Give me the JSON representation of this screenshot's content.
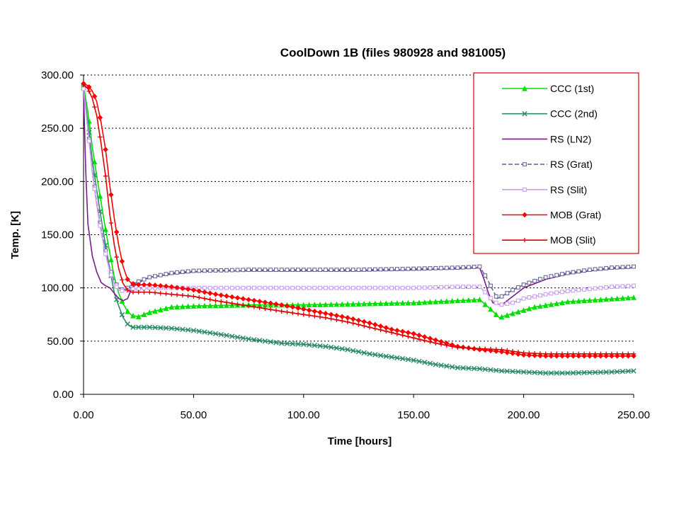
{
  "chart_data": {
    "type": "line",
    "title": "CoolDown 1B (files 980928 and 981005)",
    "xlabel": "Time [hours]",
    "ylabel": "Temp. [K]",
    "xlim": [
      0,
      250
    ],
    "ylim": [
      0,
      300
    ],
    "x_ticks": [
      "0.00",
      "50.00",
      "100.00",
      "150.00",
      "200.00",
      "250.00"
    ],
    "y_ticks": [
      "0.00",
      "50.00",
      "100.00",
      "150.00",
      "200.00",
      "250.00",
      "300.00"
    ],
    "grid": "horizontal-dotted",
    "legend_position": "top-right",
    "series": [
      {
        "name": "CCC (1st)",
        "color": "#00e000",
        "marker": "triangle",
        "dash": "solid",
        "points": [
          [
            0,
            290
          ],
          [
            2,
            265
          ],
          [
            4,
            232
          ],
          [
            6,
            205
          ],
          [
            8,
            180
          ],
          [
            10,
            155
          ],
          [
            12,
            132
          ],
          [
            14,
            110
          ],
          [
            16,
            95
          ],
          [
            18,
            85
          ],
          [
            20,
            78
          ],
          [
            22,
            74
          ],
          [
            25,
            73
          ],
          [
            30,
            77
          ],
          [
            40,
            82
          ],
          [
            50,
            83
          ],
          [
            75,
            84
          ],
          [
            100,
            84
          ],
          [
            125,
            85
          ],
          [
            150,
            86
          ],
          [
            180,
            89
          ],
          [
            185,
            80
          ],
          [
            189,
            72
          ],
          [
            195,
            76
          ],
          [
            205,
            82
          ],
          [
            220,
            87
          ],
          [
            235,
            89
          ],
          [
            250,
            91
          ]
        ]
      },
      {
        "name": "CCC (2nd)",
        "color": "#2e8b6a",
        "marker": "x",
        "dash": "solid",
        "points": [
          [
            0,
            288
          ],
          [
            2,
            255
          ],
          [
            4,
            220
          ],
          [
            6,
            192
          ],
          [
            8,
            165
          ],
          [
            10,
            140
          ],
          [
            12,
            117
          ],
          [
            14,
            95
          ],
          [
            16,
            83
          ],
          [
            18,
            72
          ],
          [
            20,
            66
          ],
          [
            22,
            63
          ],
          [
            30,
            63
          ],
          [
            40,
            62
          ],
          [
            50,
            60
          ],
          [
            60,
            57
          ],
          [
            75,
            52
          ],
          [
            90,
            48
          ],
          [
            100,
            47
          ],
          [
            110,
            45
          ],
          [
            120,
            42
          ],
          [
            130,
            38
          ],
          [
            140,
            35
          ],
          [
            150,
            32
          ],
          [
            160,
            28
          ],
          [
            170,
            25
          ],
          [
            180,
            24
          ],
          [
            190,
            22
          ],
          [
            200,
            21
          ],
          [
            210,
            20
          ],
          [
            220,
            20
          ],
          [
            240,
            21
          ],
          [
            250,
            22
          ]
        ]
      },
      {
        "name": "RS (LN2)",
        "color": "#7b1c8c",
        "marker": "none",
        "dash": "solid",
        "points": [
          [
            0,
            285
          ],
          [
            1,
            210
          ],
          [
            2,
            160
          ],
          [
            4,
            130
          ],
          [
            6,
            115
          ],
          [
            8,
            105
          ],
          [
            10,
            102
          ],
          [
            12,
            100
          ],
          [
            14,
            95
          ],
          [
            16,
            90
          ],
          [
            18,
            88
          ],
          [
            20,
            90
          ],
          [
            22,
            100
          ],
          [
            25,
            105
          ],
          [
            30,
            110
          ],
          [
            40,
            113
          ],
          [
            50,
            115
          ],
          [
            60,
            116
          ],
          [
            75,
            116
          ],
          [
            100,
            116
          ],
          [
            125,
            116
          ],
          [
            150,
            117
          ],
          [
            170,
            118
          ],
          [
            180,
            119
          ],
          [
            182,
            108
          ],
          [
            184,
            95
          ],
          [
            186,
            86
          ],
          [
            190,
            84
          ],
          [
            195,
            92
          ],
          [
            200,
            100
          ],
          [
            210,
            108
          ],
          [
            220,
            113
          ],
          [
            230,
            116
          ],
          [
            240,
            118
          ],
          [
            250,
            119
          ]
        ]
      },
      {
        "name": "RS (Grat)",
        "color": "#6a6a9a",
        "marker": "square",
        "dash": "dashed",
        "points": [
          [
            0,
            288
          ],
          [
            2,
            250
          ],
          [
            4,
            210
          ],
          [
            6,
            180
          ],
          [
            8,
            155
          ],
          [
            10,
            135
          ],
          [
            12,
            118
          ],
          [
            14,
            106
          ],
          [
            16,
            100
          ],
          [
            18,
            98
          ],
          [
            20,
            100
          ],
          [
            22,
            103
          ],
          [
            25,
            106
          ],
          [
            30,
            110
          ],
          [
            40,
            114
          ],
          [
            50,
            116
          ],
          [
            75,
            117
          ],
          [
            100,
            117
          ],
          [
            125,
            117
          ],
          [
            150,
            118
          ],
          [
            170,
            119
          ],
          [
            180,
            120
          ],
          [
            183,
            110
          ],
          [
            186,
            98
          ],
          [
            188,
            90
          ],
          [
            190,
            92
          ],
          [
            195,
            98
          ],
          [
            200,
            103
          ],
          [
            210,
            110
          ],
          [
            220,
            114
          ],
          [
            230,
            117
          ],
          [
            240,
            119
          ],
          [
            250,
            120
          ]
        ]
      },
      {
        "name": "RS (Slit)",
        "color": "#c8a0ec",
        "marker": "square",
        "dash": "solid",
        "points": [
          [
            0,
            287
          ],
          [
            2,
            248
          ],
          [
            4,
            208
          ],
          [
            6,
            178
          ],
          [
            8,
            152
          ],
          [
            10,
            132
          ],
          [
            12,
            115
          ],
          [
            14,
            104
          ],
          [
            16,
            98
          ],
          [
            18,
            97
          ],
          [
            20,
            98
          ],
          [
            22,
            99
          ],
          [
            25,
            99
          ],
          [
            30,
            100
          ],
          [
            40,
            100
          ],
          [
            50,
            100
          ],
          [
            75,
            100
          ],
          [
            100,
            100
          ],
          [
            125,
            100
          ],
          [
            150,
            100
          ],
          [
            170,
            101
          ],
          [
            180,
            101
          ],
          [
            183,
            95
          ],
          [
            186,
            88
          ],
          [
            189,
            84
          ],
          [
            195,
            86
          ],
          [
            200,
            90
          ],
          [
            210,
            94
          ],
          [
            220,
            97
          ],
          [
            230,
            99
          ],
          [
            240,
            101
          ],
          [
            250,
            102
          ]
        ]
      },
      {
        "name": "MOB (Grat)",
        "color": "#ff0000",
        "marker": "diamond",
        "dash": "solid",
        "points": [
          [
            0,
            292
          ],
          [
            2,
            290
          ],
          [
            4,
            285
          ],
          [
            6,
            275
          ],
          [
            8,
            255
          ],
          [
            10,
            230
          ],
          [
            12,
            195
          ],
          [
            14,
            165
          ],
          [
            16,
            140
          ],
          [
            18,
            120
          ],
          [
            20,
            108
          ],
          [
            22,
            104
          ],
          [
            25,
            103
          ],
          [
            30,
            103
          ],
          [
            40,
            101
          ],
          [
            50,
            98
          ],
          [
            60,
            94
          ],
          [
            75,
            89
          ],
          [
            90,
            84
          ],
          [
            100,
            80
          ],
          [
            110,
            76
          ],
          [
            120,
            72
          ],
          [
            130,
            67
          ],
          [
            140,
            61
          ],
          [
            150,
            57
          ],
          [
            160,
            51
          ],
          [
            170,
            45
          ],
          [
            180,
            42
          ],
          [
            190,
            40
          ],
          [
            200,
            37
          ],
          [
            210,
            36
          ],
          [
            220,
            36
          ],
          [
            235,
            36
          ],
          [
            250,
            36
          ]
        ]
      },
      {
        "name": "MOB (Slit)",
        "color": "#e00000",
        "marker": "plus",
        "dash": "solid",
        "points": [
          [
            0,
            291
          ],
          [
            2,
            287
          ],
          [
            4,
            278
          ],
          [
            6,
            262
          ],
          [
            8,
            235
          ],
          [
            10,
            205
          ],
          [
            12,
            168
          ],
          [
            14,
            140
          ],
          [
            16,
            118
          ],
          [
            18,
            104
          ],
          [
            20,
            98
          ],
          [
            22,
            96
          ],
          [
            30,
            96
          ],
          [
            40,
            94
          ],
          [
            50,
            92
          ],
          [
            60,
            88
          ],
          [
            75,
            83
          ],
          [
            90,
            78
          ],
          [
            100,
            75
          ],
          [
            110,
            72
          ],
          [
            120,
            68
          ],
          [
            130,
            63
          ],
          [
            140,
            58
          ],
          [
            150,
            53
          ],
          [
            160,
            48
          ],
          [
            170,
            44
          ],
          [
            180,
            43
          ],
          [
            190,
            42
          ],
          [
            200,
            39
          ],
          [
            210,
            38
          ],
          [
            220,
            38
          ],
          [
            235,
            38
          ],
          [
            250,
            38
          ]
        ]
      }
    ]
  }
}
